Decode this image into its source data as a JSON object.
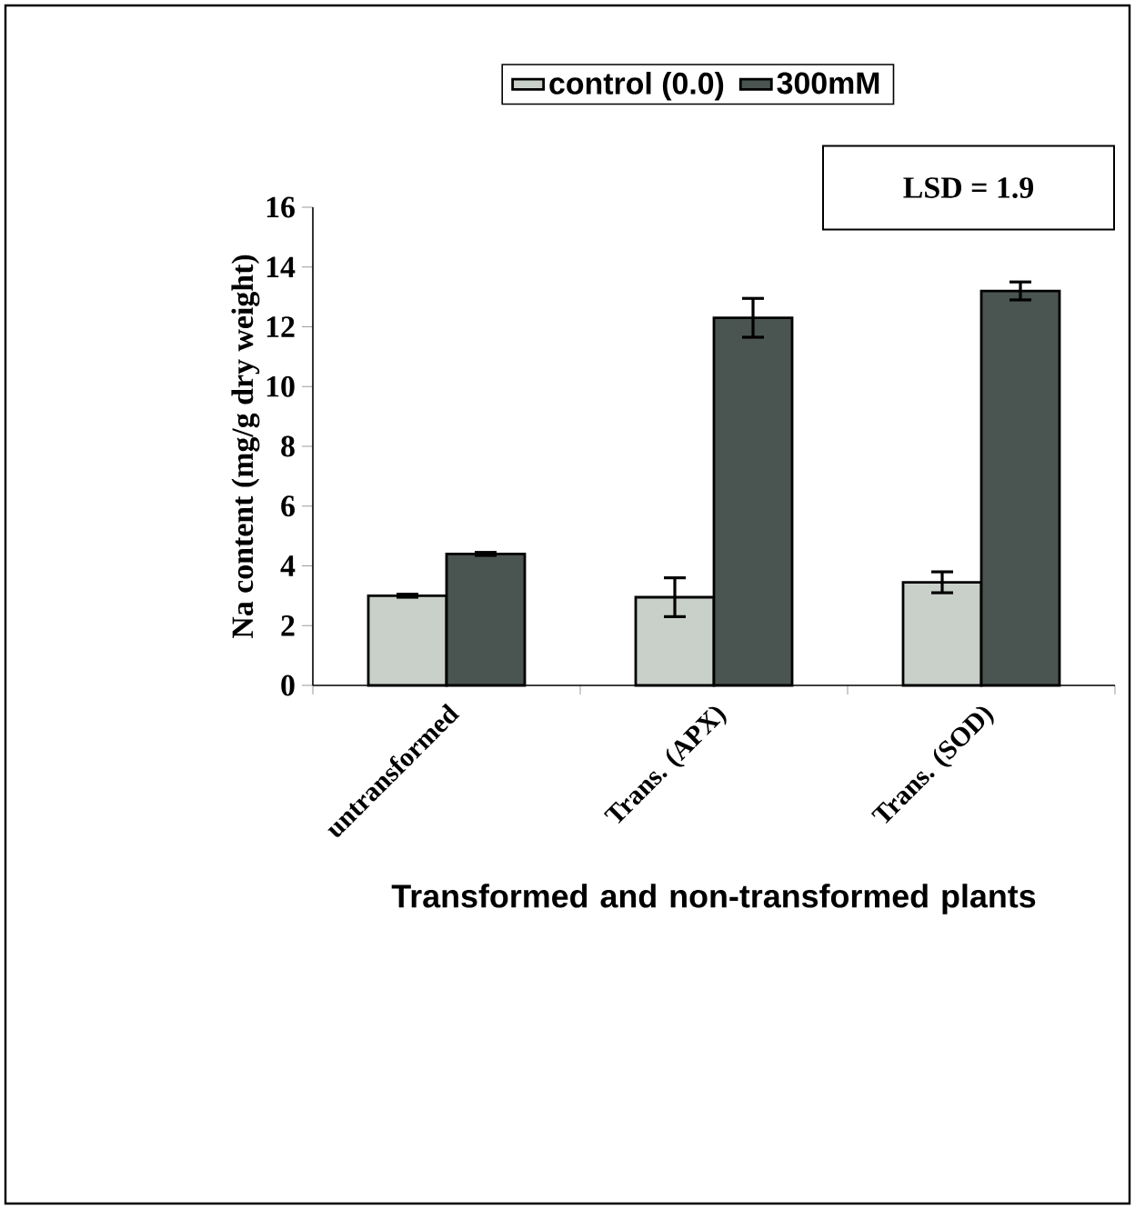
{
  "chart_data": {
    "type": "bar",
    "categories": [
      "untransformed",
      "Trans. (APX)",
      "Trans. (SOD)"
    ],
    "series": [
      {
        "name": "control (0.0)",
        "color": "#c9d0c9",
        "values": [
          3.0,
          2.95,
          3.45
        ],
        "errors": [
          0.05,
          0.65,
          0.35
        ]
      },
      {
        "name": "300mM",
        "color": "#4a5450",
        "values": [
          4.4,
          12.3,
          13.2
        ],
        "errors": [
          0.05,
          0.65,
          0.3
        ]
      }
    ],
    "xlabel": "Transformed and non-transformed plants",
    "ylabel": "Na content (mg/g dry weight)",
    "ylim": [
      0,
      16
    ],
    "yticks": [
      0,
      2,
      4,
      6,
      8,
      10,
      12,
      14,
      16
    ],
    "annotations": [
      "LSD = 1.9"
    ],
    "legend": "top",
    "grid": false
  }
}
